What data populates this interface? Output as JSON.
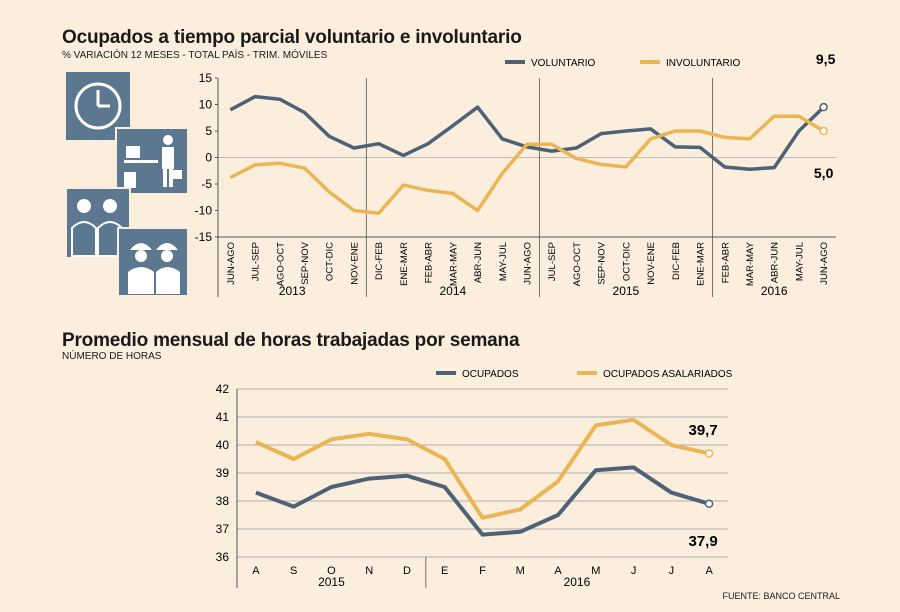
{
  "colors": {
    "background": "#fbeedd",
    "dark_series": "#4d6276",
    "gold_series": "#ebb553",
    "icon_bg": "#5c7891"
  },
  "icons": [
    "clock-icon",
    "office-worker-icon",
    "professionals-icon",
    "construction-workers-icon"
  ],
  "source": "FUENTE: BANCO CENTRAL",
  "chart_data": [
    {
      "type": "line",
      "title": "Ocupados a tiempo parcial voluntario e involuntario",
      "subtitle": "% VARIACIÓN 12 MESES - TOTAL PAÍS - TRIM. MÓVILES",
      "categories": [
        "JUN-AGO",
        "JUL-SEP",
        "AGO-OCT",
        "SEP-NOV",
        "OCT-DIC",
        "NOV-ENE",
        "DIC-FEB",
        "ENE-MAR",
        "FEB-ABR",
        "MAR-MAY",
        "ABR-JUN",
        "MAY-JUL",
        "JUN-AGO",
        "JUL-SEP",
        "AGO-OCT",
        "SEP-NOV",
        "OCT-DIC",
        "NOV-ENE",
        "DIC-FEB",
        "ENE-MAR",
        "FEB-ABR",
        "MAR-MAY",
        "ABR-JUN",
        "MAY-JUL",
        "JUN-AGO"
      ],
      "years": [
        {
          "label": "2013",
          "start": 0,
          "end": 5
        },
        {
          "label": "2014",
          "start": 6,
          "end": 12
        },
        {
          "label": "2015",
          "start": 13,
          "end": 19
        },
        {
          "label": "2016",
          "start": 20,
          "end": 24
        }
      ],
      "ylim": [
        -15,
        15
      ],
      "yticks": [
        15,
        10,
        5,
        0,
        -5,
        -10,
        -15
      ],
      "series": [
        {
          "name": "VOLUNTARIO",
          "color": "#4d6276",
          "values": [
            9.0,
            11.5,
            11.0,
            8.5,
            4.0,
            1.8,
            2.6,
            0.4,
            2.6,
            6.0,
            9.5,
            3.5,
            2.0,
            1.2,
            1.8,
            4.5,
            5.0,
            5.4,
            2.0,
            1.9,
            -1.8,
            -2.2,
            -1.9,
            5.0,
            9.5
          ]
        },
        {
          "name": "INVOLUNTARIO",
          "color": "#ebb553",
          "values": [
            -3.8,
            -1.4,
            -1.1,
            -2.0,
            -6.5,
            -10.0,
            -10.5,
            -5.2,
            -6.2,
            -6.8,
            -10.0,
            -3.0,
            2.5,
            2.5,
            -0.2,
            -1.3,
            -1.8,
            3.5,
            5.0,
            5.0,
            3.8,
            3.5,
            7.8,
            7.8,
            5.0
          ]
        }
      ],
      "annotations": [
        {
          "label": "9,5",
          "series": "VOLUNTARIO"
        },
        {
          "label": "5,0",
          "series": "INVOLUNTARIO"
        }
      ],
      "legend": "top-right"
    },
    {
      "type": "line",
      "title": "Promedio mensual de horas trabajadas por semana",
      "subtitle": "NÚMERO DE HORAS",
      "categories": [
        "A",
        "S",
        "O",
        "N",
        "D",
        "E",
        "F",
        "M",
        "A",
        "M",
        "J",
        "J",
        "A"
      ],
      "years": [
        {
          "label": "2015",
          "start": 0,
          "end": 4
        },
        {
          "label": "2016",
          "start": 5,
          "end": 12
        }
      ],
      "ylim": [
        36,
        42
      ],
      "yticks": [
        42,
        41,
        40,
        39,
        38,
        37,
        36
      ],
      "series": [
        {
          "name": "OCUPADOS",
          "color": "#4d6276",
          "values": [
            38.3,
            37.8,
            38.5,
            38.8,
            38.9,
            38.5,
            36.8,
            36.9,
            37.5,
            39.1,
            39.2,
            38.3,
            37.9
          ]
        },
        {
          "name": "OCUPADOS ASALARIADOS",
          "color": "#ebb553",
          "values": [
            40.1,
            39.5,
            40.2,
            40.4,
            40.2,
            39.5,
            37.4,
            37.7,
            38.7,
            40.7,
            40.9,
            40.0,
            39.7
          ]
        }
      ],
      "annotations": [
        {
          "label": "39,7",
          "series": "OCUPADOS ASALARIADOS"
        },
        {
          "label": "37,9",
          "series": "OCUPADOS"
        }
      ],
      "legend": "top-center"
    }
  ]
}
